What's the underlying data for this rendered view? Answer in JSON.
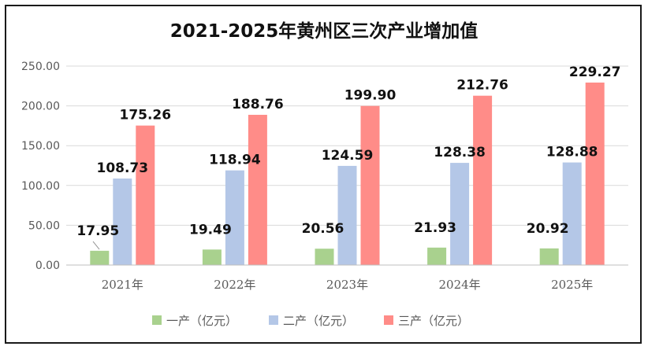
{
  "chart_data": {
    "type": "bar",
    "title": "2021-2025年黄州区三次产业增加值",
    "categories": [
      "2021年",
      "2022年",
      "2023年",
      "2024年",
      "2025年"
    ],
    "series": [
      {
        "name": "一产（亿元）",
        "color": "#a9d18e",
        "values": [
          17.95,
          19.49,
          20.56,
          21.93,
          20.92
        ]
      },
      {
        "name": "二产（亿元）",
        "color": "#b4c7e7",
        "values": [
          108.73,
          118.94,
          124.59,
          128.38,
          128.88
        ]
      },
      {
        "name": "三产（亿元）",
        "color": "#ff8c88",
        "values": [
          175.26,
          188.76,
          199.9,
          212.76,
          229.27
        ]
      }
    ],
    "yticks": [
      "0.00",
      "50.00",
      "100.00",
      "150.00",
      "200.00",
      "250.00"
    ],
    "ylim": [
      0,
      250
    ],
    "grid": true,
    "legend": "bottom",
    "data_labels": true,
    "xlabel": "",
    "ylabel": ""
  }
}
